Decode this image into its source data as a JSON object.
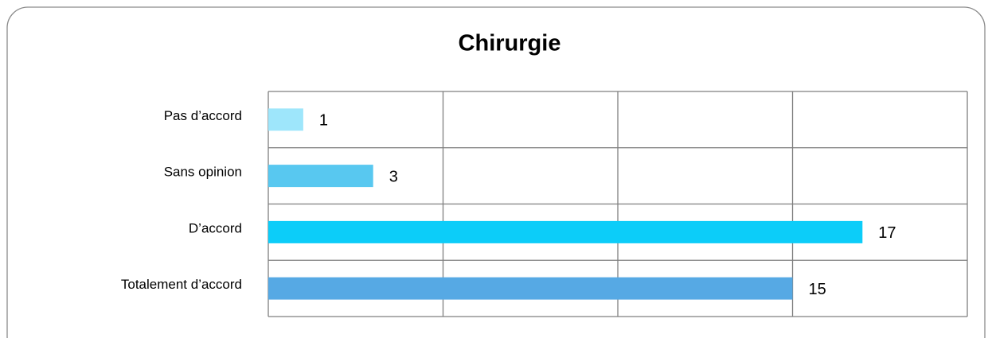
{
  "chart_data": {
    "type": "bar",
    "orientation": "horizontal",
    "title": "Chirurgie",
    "categories": [
      "Pas d’accord",
      "Sans opinion",
      "D’accord",
      "Totalement d’accord"
    ],
    "values": [
      1,
      3,
      17,
      15
    ],
    "colors": [
      "#9ee6fb",
      "#58c8f0",
      "#0ccdf9",
      "#56a9e4"
    ],
    "xlim": [
      0,
      20
    ],
    "xticks": [
      0,
      5,
      10,
      15,
      20
    ],
    "grid": true
  }
}
